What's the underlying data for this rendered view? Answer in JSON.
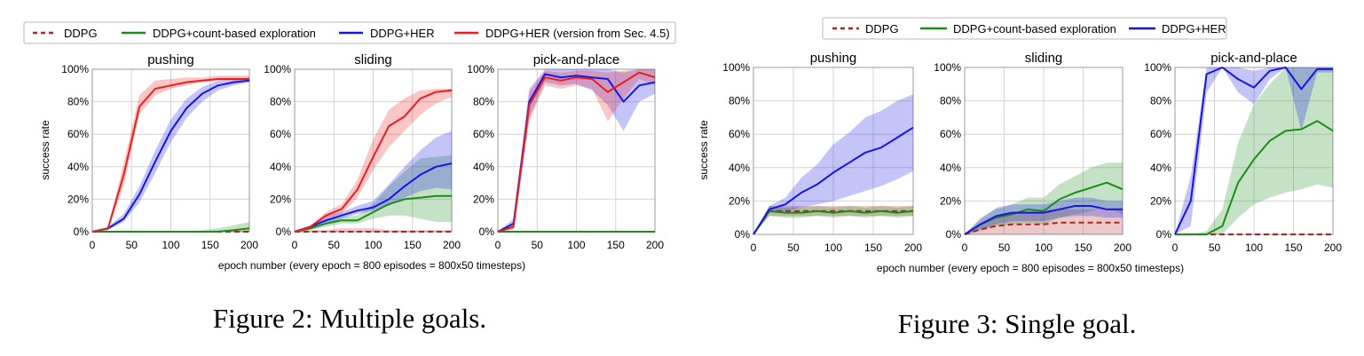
{
  "figures": [
    {
      "caption": "Figure 2: Multiple goals.",
      "xlabel": "epoch number (every epoch = 800 episodes = 800x50 timesteps)",
      "ylabel": "success rate",
      "legend": [
        "DDPG",
        "DDPG+count-based exploration",
        "DDPG+HER",
        "DDPG+HER (version from Sec. 4.5)"
      ]
    },
    {
      "caption": "Figure 3: Single goal.",
      "xlabel": "epoch number (every epoch = 800 episodes = 800x50 timesteps)",
      "ylabel": "success rate",
      "legend": [
        "DDPG",
        "DDPG+count-based exploration",
        "DDPG+HER"
      ]
    }
  ],
  "colors": {
    "DDPG": "#b22222",
    "DDPG+count-based exploration": "#1a8c1a",
    "DDPG+HER": "#1515e6",
    "DDPG+HER (version from Sec. 4.5)": "#ee1c1c",
    "grid": "#d4d4d4"
  },
  "chart_data": [
    {
      "type": "line",
      "figure": "Figure 2",
      "title": "pushing",
      "x": [
        0,
        20,
        40,
        60,
        80,
        100,
        120,
        140,
        160,
        180,
        200
      ],
      "xlim": [
        0,
        200
      ],
      "ylim": [
        0,
        100
      ],
      "xticks": [
        "0",
        "50",
        "100",
        "150",
        "200"
      ],
      "yticks": [
        "0%",
        "20%",
        "40%",
        "60%",
        "80%",
        "100%"
      ],
      "grid": true,
      "series": [
        {
          "name": "DDPG",
          "values": [
            0,
            0,
            0,
            0,
            0,
            0,
            0,
            0,
            0,
            0,
            0
          ],
          "lower": [
            0,
            0,
            0,
            0,
            0,
            0,
            0,
            0,
            0,
            0,
            0
          ],
          "upper": [
            0,
            0,
            0,
            0,
            0,
            0,
            0,
            0,
            0,
            0,
            1
          ]
        },
        {
          "name": "DDPG+count-based exploration",
          "values": [
            0,
            0,
            0,
            0,
            0,
            0,
            0,
            0,
            0,
            1,
            2
          ],
          "lower": [
            0,
            0,
            0,
            0,
            0,
            0,
            0,
            0,
            0,
            0,
            0
          ],
          "upper": [
            0,
            0,
            0,
            0,
            0,
            0,
            0,
            1,
            2,
            4,
            6
          ]
        },
        {
          "name": "DDPG+HER",
          "values": [
            0,
            2,
            8,
            23,
            43,
            62,
            76,
            85,
            90,
            92,
            93
          ],
          "lower": [
            0,
            1,
            6,
            18,
            36,
            55,
            70,
            80,
            87,
            90,
            92
          ],
          "upper": [
            0,
            3,
            11,
            28,
            50,
            69,
            82,
            89,
            93,
            94,
            95
          ]
        },
        {
          "name": "DDPG+HER (version from Sec. 4.5)",
          "values": [
            0,
            2,
            35,
            77,
            88,
            90,
            92,
            93,
            94,
            94,
            94
          ],
          "lower": [
            0,
            1,
            28,
            72,
            84,
            88,
            90,
            92,
            93,
            93,
            93
          ],
          "upper": [
            0,
            3,
            42,
            84,
            93,
            94,
            95,
            95,
            96,
            96,
            96
          ]
        }
      ]
    },
    {
      "type": "line",
      "figure": "Figure 2",
      "title": "sliding",
      "x": [
        0,
        20,
        40,
        60,
        80,
        100,
        120,
        140,
        160,
        180,
        200
      ],
      "xlim": [
        0,
        200
      ],
      "ylim": [
        0,
        100
      ],
      "xticks": [
        "0",
        "50",
        "100",
        "150",
        "200"
      ],
      "yticks": [
        "0%",
        "20%",
        "40%",
        "60%",
        "80%",
        "100%"
      ],
      "grid": true,
      "series": [
        {
          "name": "DDPG",
          "values": [
            0,
            0,
            0,
            0,
            0,
            0,
            0,
            0,
            0,
            0,
            0
          ],
          "lower": [
            0,
            0,
            0,
            0,
            0,
            0,
            0,
            0,
            0,
            0,
            0
          ],
          "upper": [
            0,
            1,
            1,
            2,
            2,
            2,
            1,
            1,
            1,
            1,
            1
          ]
        },
        {
          "name": "DDPG+count-based exploration",
          "values": [
            0,
            2,
            5,
            7,
            7,
            12,
            17,
            20,
            21,
            22,
            22
          ],
          "lower": [
            0,
            1,
            3,
            5,
            5,
            8,
            10,
            10,
            8,
            6,
            6
          ],
          "upper": [
            0,
            3,
            7,
            9,
            10,
            17,
            28,
            37,
            45,
            46,
            47
          ]
        },
        {
          "name": "DDPG+HER",
          "values": [
            0,
            3,
            7,
            10,
            13,
            15,
            20,
            28,
            35,
            40,
            42
          ],
          "lower": [
            0,
            2,
            5,
            8,
            11,
            13,
            16,
            21,
            25,
            27,
            26
          ],
          "upper": [
            0,
            4,
            10,
            12,
            16,
            19,
            29,
            40,
            50,
            58,
            62
          ]
        },
        {
          "name": "DDPG+HER (version from Sec. 4.5)",
          "values": [
            0,
            3,
            10,
            14,
            26,
            46,
            65,
            71,
            82,
            86,
            87
          ],
          "lower": [
            0,
            2,
            8,
            11,
            21,
            38,
            52,
            62,
            72,
            79,
            83
          ],
          "upper": [
            0,
            4,
            12,
            17,
            32,
            57,
            75,
            82,
            87,
            88,
            88
          ]
        }
      ]
    },
    {
      "type": "line",
      "figure": "Figure 2",
      "title": "pick-and-place",
      "x": [
        0,
        20,
        40,
        60,
        80,
        100,
        120,
        140,
        160,
        180,
        200
      ],
      "xlim": [
        0,
        200
      ],
      "ylim": [
        0,
        100
      ],
      "xticks": [
        "0",
        "50",
        "100",
        "150",
        "200"
      ],
      "yticks": [
        "0%",
        "20%",
        "40%",
        "60%",
        "80%",
        "100%"
      ],
      "grid": true,
      "series": [
        {
          "name": "DDPG",
          "values": [
            0,
            0,
            0,
            0,
            0,
            0,
            0,
            0,
            0,
            0,
            0
          ],
          "lower": [
            0,
            0,
            0,
            0,
            0,
            0,
            0,
            0,
            0,
            0,
            0
          ],
          "upper": [
            0,
            0,
            0,
            0,
            0,
            0,
            0,
            0,
            0,
            0,
            0
          ]
        },
        {
          "name": "DDPG+count-based exploration",
          "values": [
            0,
            0,
            0,
            0,
            0,
            0,
            0,
            0,
            0,
            0,
            0
          ],
          "lower": [
            0,
            0,
            0,
            0,
            0,
            0,
            0,
            0,
            0,
            0,
            0
          ],
          "upper": [
            0,
            0,
            0,
            0,
            0,
            0,
            0,
            0,
            0,
            0,
            0
          ]
        },
        {
          "name": "DDPG+HER",
          "values": [
            0,
            5,
            80,
            97,
            95,
            96,
            95,
            94,
            80,
            90,
            92
          ],
          "lower": [
            0,
            2,
            70,
            92,
            90,
            91,
            87,
            78,
            62,
            80,
            85
          ],
          "upper": [
            0,
            8,
            88,
            100,
            100,
            100,
            100,
            100,
            98,
            100,
            100
          ]
        },
        {
          "name": "DDPG+HER (version from Sec. 4.5)",
          "values": [
            0,
            3,
            78,
            95,
            93,
            95,
            94,
            86,
            92,
            98,
            95
          ],
          "lower": [
            0,
            1,
            68,
            90,
            88,
            90,
            88,
            68,
            82,
            94,
            90
          ],
          "upper": [
            0,
            5,
            86,
            99,
            98,
            99,
            99,
            98,
            99,
            100,
            100
          ]
        }
      ]
    },
    {
      "type": "line",
      "figure": "Figure 3",
      "title": "pushing",
      "x": [
        0,
        20,
        40,
        60,
        80,
        100,
        120,
        140,
        160,
        180,
        200
      ],
      "xlim": [
        0,
        200
      ],
      "ylim": [
        0,
        100
      ],
      "xticks": [
        "0",
        "50",
        "100",
        "150",
        "200"
      ],
      "yticks": [
        "0%",
        "20%",
        "40%",
        "60%",
        "80%",
        "100%"
      ],
      "grid": true,
      "series": [
        {
          "name": "DDPG",
          "values": [
            0,
            14,
            14,
            14,
            14,
            14,
            14,
            14,
            14,
            14,
            14
          ],
          "lower": [
            0,
            11,
            11,
            11,
            11,
            11,
            11,
            11,
            11,
            11,
            11
          ],
          "upper": [
            0,
            17,
            17,
            17,
            17,
            17,
            17,
            17,
            17,
            17,
            17
          ]
        },
        {
          "name": "DDPG+count-based exploration",
          "values": [
            0,
            14,
            13,
            13,
            14,
            13,
            14,
            13,
            14,
            13,
            14
          ],
          "lower": [
            0,
            11,
            10,
            10,
            11,
            10,
            11,
            10,
            11,
            10,
            11
          ],
          "upper": [
            0,
            17,
            16,
            16,
            17,
            16,
            17,
            16,
            17,
            16,
            17
          ]
        },
        {
          "name": "DDPG+HER",
          "values": [
            0,
            15,
            18,
            25,
            30,
            37,
            43,
            49,
            52,
            58,
            64
          ],
          "lower": [
            0,
            13,
            14,
            16,
            18,
            20,
            23,
            26,
            29,
            33,
            38
          ],
          "upper": [
            0,
            17,
            22,
            34,
            42,
            54,
            61,
            70,
            74,
            80,
            84
          ]
        }
      ]
    },
    {
      "type": "line",
      "figure": "Figure 3",
      "title": "sliding",
      "x": [
        0,
        20,
        40,
        60,
        80,
        100,
        120,
        140,
        160,
        180,
        200
      ],
      "xlim": [
        0,
        200
      ],
      "ylim": [
        0,
        100
      ],
      "xticks": [
        "0",
        "50",
        "100",
        "150",
        "200"
      ],
      "yticks": [
        "0%",
        "20%",
        "40%",
        "60%",
        "80%",
        "100%"
      ],
      "grid": true,
      "series": [
        {
          "name": "DDPG",
          "values": [
            0,
            3,
            5,
            6,
            6,
            6,
            7,
            7,
            7,
            7,
            7
          ],
          "lower": [
            0,
            0,
            0,
            0,
            0,
            0,
            0,
            0,
            0,
            0,
            0
          ],
          "upper": [
            0,
            7,
            11,
            13,
            14,
            15,
            15,
            15,
            15,
            15,
            15
          ]
        },
        {
          "name": "DDPG+count-based exploration",
          "values": [
            0,
            6,
            10,
            12,
            15,
            14,
            21,
            25,
            28,
            31,
            27
          ],
          "lower": [
            0,
            2,
            5,
            6,
            7,
            6,
            10,
            12,
            14,
            16,
            12
          ],
          "upper": [
            0,
            10,
            15,
            18,
            22,
            22,
            30,
            35,
            40,
            43,
            43
          ]
        },
        {
          "name": "DDPG+HER",
          "values": [
            0,
            6,
            11,
            13,
            13,
            13,
            15,
            17,
            17,
            15,
            15
          ],
          "lower": [
            0,
            3,
            6,
            8,
            8,
            8,
            10,
            11,
            11,
            10,
            10
          ],
          "upper": [
            0,
            9,
            16,
            18,
            18,
            18,
            20,
            22,
            22,
            20,
            20
          ]
        }
      ]
    },
    {
      "type": "line",
      "figure": "Figure 3",
      "title": "pick-and-place",
      "x": [
        0,
        20,
        40,
        60,
        80,
        100,
        120,
        140,
        160,
        180,
        200
      ],
      "xlim": [
        0,
        200
      ],
      "ylim": [
        0,
        100
      ],
      "xticks": [
        "0",
        "50",
        "100",
        "150",
        "200"
      ],
      "yticks": [
        "0%",
        "20%",
        "40%",
        "60%",
        "80%",
        "100%"
      ],
      "grid": true,
      "series": [
        {
          "name": "DDPG",
          "values": [
            0,
            0,
            0,
            0,
            0,
            0,
            0,
            0,
            0,
            0,
            0
          ],
          "lower": [
            0,
            0,
            0,
            0,
            0,
            0,
            0,
            0,
            0,
            0,
            0
          ],
          "upper": [
            0,
            0,
            0,
            0,
            0,
            0,
            0,
            0,
            0,
            0,
            0
          ]
        },
        {
          "name": "DDPG+count-based exploration",
          "values": [
            0,
            0,
            0,
            5,
            31,
            45,
            56,
            62,
            63,
            68,
            62
          ],
          "lower": [
            0,
            0,
            0,
            0,
            10,
            18,
            22,
            25,
            27,
            30,
            28
          ],
          "upper": [
            0,
            0,
            2,
            15,
            55,
            78,
            90,
            100,
            100,
            100,
            100
          ]
        },
        {
          "name": "DDPG+HER",
          "values": [
            0,
            20,
            96,
            100,
            93,
            88,
            98,
            100,
            87,
            99,
            99
          ],
          "lower": [
            0,
            5,
            85,
            100,
            85,
            78,
            93,
            100,
            62,
            97,
            97
          ],
          "upper": [
            0,
            35,
            100,
            100,
            100,
            98,
            100,
            100,
            100,
            100,
            100
          ]
        }
      ]
    }
  ]
}
